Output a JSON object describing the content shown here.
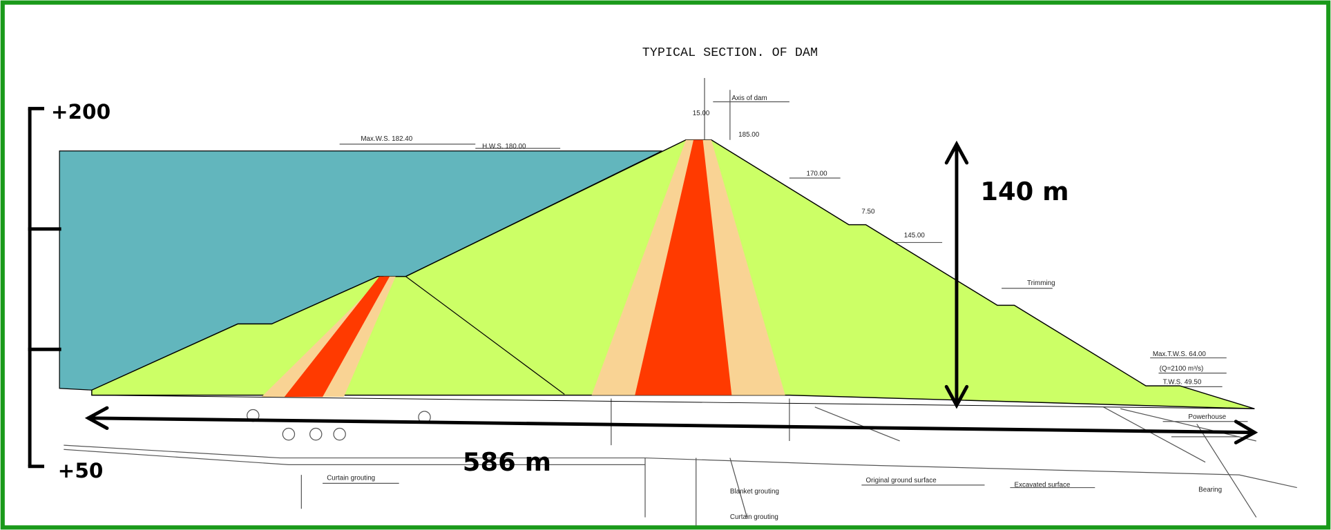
{
  "title": "TYPICAL SECTION. OF DAM",
  "scale": {
    "top": "+200",
    "bottom": "+50"
  },
  "dimensions": {
    "height": "140 m",
    "length": "586 m"
  },
  "annotations": {
    "max_ws": "Max.W.S. 182.40",
    "hws": "H.W.S. 180.00",
    "axis": "Axis of dam",
    "crest_width": "15.00",
    "crest_level": "185.00",
    "berm_1": "170.00",
    "berm_width": "7.50",
    "berm_2": "145.00",
    "trimming": "Trimming",
    "max_tws": "Max.T.W.S. 64.00",
    "discharge": "(Q=2100 m³/s)",
    "tws": "T.W.S. 49.50",
    "powerhouse": "Powerhouse",
    "curtain_1": "Curtain grouting",
    "blanket": "Blanket grouting",
    "curtain_2": "Curtain grouting",
    "original": "Original ground surface",
    "excavated": "Excavated surface",
    "bearing": "Bearing"
  }
}
